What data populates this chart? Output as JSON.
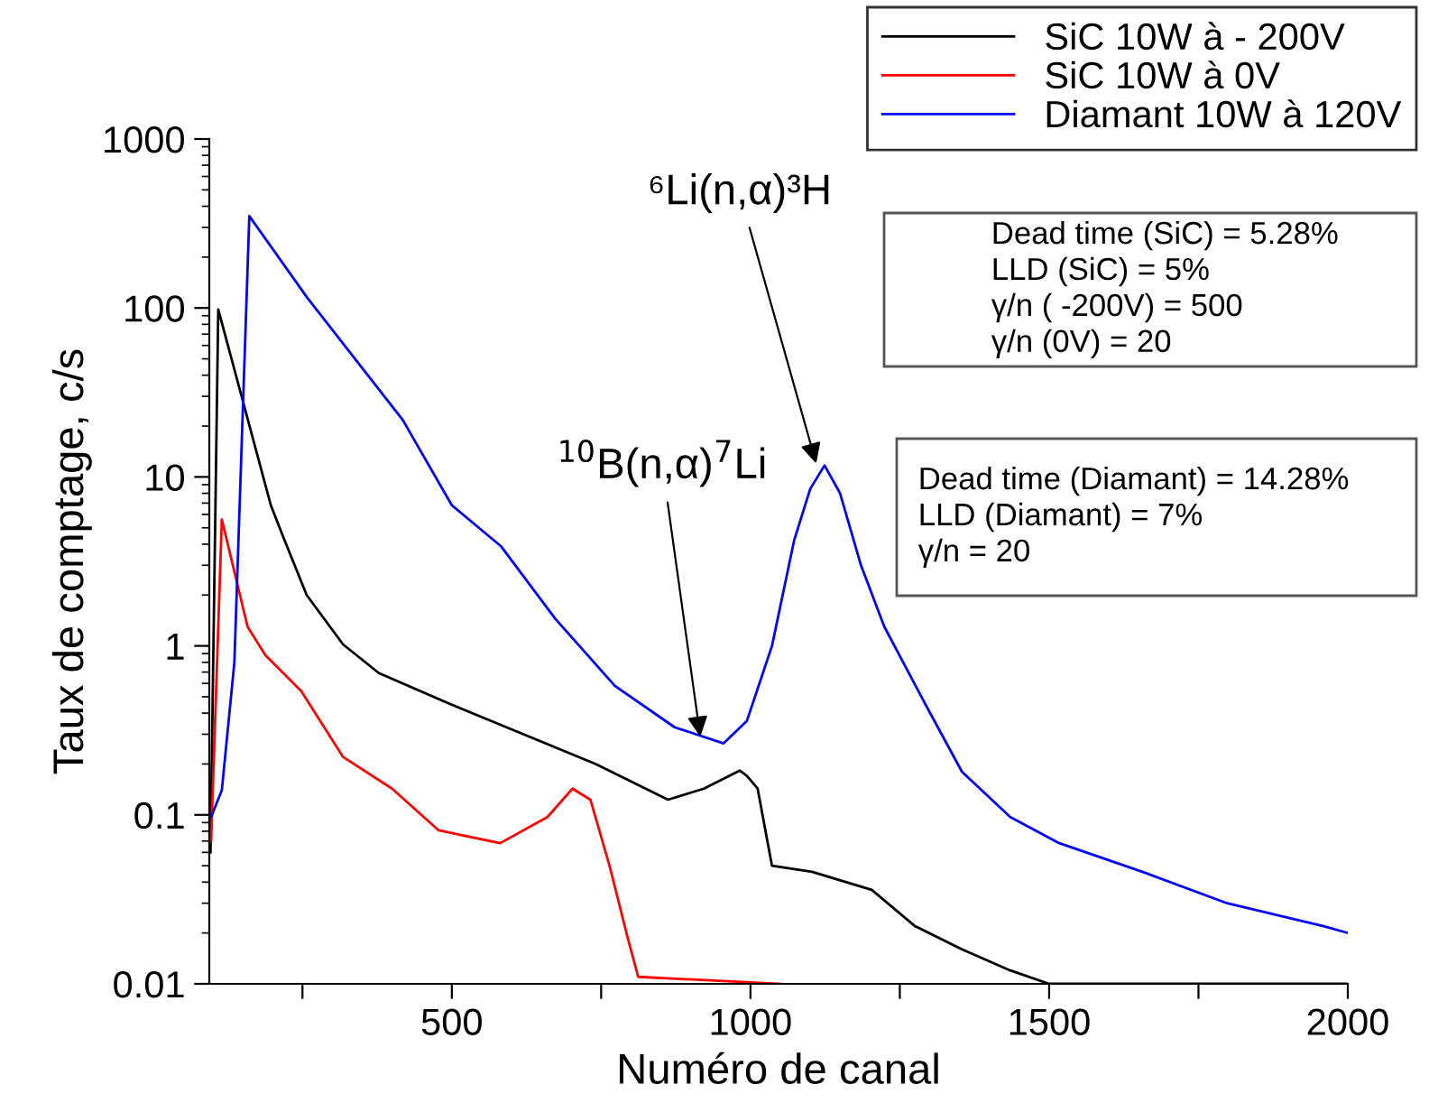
{
  "chart_data": {
    "type": "line",
    "xlabel": "Numéro de canal",
    "ylabel": "Taux de comptage, c/s",
    "log": "y",
    "xlim": [
      94,
      2000
    ],
    "xticks": [
      {
        "value": 250,
        "label": null
      },
      500,
      {
        "value": 750,
        "label": null
      },
      1000,
      {
        "value": 1250,
        "label": null
      },
      1500,
      {
        "value": 1750,
        "label": null
      },
      2000
    ],
    "ylim": [
      0.01,
      1000
    ],
    "yticks": [
      0.01,
      0.1,
      1,
      10,
      100,
      1000
    ],
    "grid": false,
    "legend": "top right",
    "marker": "none",
    "line_style": "solid",
    "series": [
      {
        "name": "SiC 10W à - 200V",
        "color": "#000000",
        "x": [
          96,
          109,
          197,
          218,
          257,
          318,
          378,
          499,
          620,
          741,
          862,
          922,
          982,
          994,
          1012,
          1036,
          1103,
          1203,
          1275,
          1354,
          1435,
          1500,
          2000
        ],
        "values": [
          0.06,
          98,
          6.8,
          4.4,
          2.0,
          1.02,
          0.69,
          0.45,
          0.3,
          0.2,
          0.123,
          0.143,
          0.183,
          0.17,
          0.143,
          0.05,
          0.046,
          0.036,
          0.022,
          0.016,
          0.012,
          0.01,
          0.01
        ]
      },
      {
        "name": "SiC 10W à 0V",
        "color": "#ff0000",
        "x": [
          97,
          115,
          158,
          188,
          248,
          318,
          400,
          478,
          581,
          660,
          702,
          732,
          764,
          794,
          812,
          1050
        ],
        "values": [
          0.07,
          5.6,
          1.3,
          0.88,
          0.54,
          0.22,
          0.143,
          0.081,
          0.068,
          0.097,
          0.143,
          0.123,
          0.05,
          0.019,
          0.011,
          0.01
        ]
      },
      {
        "name": "Diamant 10W à 120V",
        "color": "#0000ff",
        "x": [
          97,
          115,
          136,
          161,
          258,
          418,
          500,
          582,
          673,
          773,
          873,
          955,
          994,
          1036,
          1073,
          1100,
          1124,
          1150,
          1185,
          1224,
          1293,
          1354,
          1435,
          1517,
          1656,
          1798,
          1958,
          2000
        ],
        "values": [
          0.097,
          0.14,
          0.8,
          350,
          115,
          21.7,
          6.8,
          3.9,
          1.45,
          0.58,
          0.33,
          0.265,
          0.36,
          1.0,
          4.2,
          8.5,
          11.7,
          8.0,
          3.0,
          1.3,
          0.45,
          0.18,
          0.097,
          0.068,
          0.046,
          0.03,
          0.022,
          0.02
        ]
      }
    ],
    "annotations": [
      {
        "text": "⁶Li(n,α)³H",
        "x": 1110,
        "y": 12
      },
      {
        "text": "$^{10}$B(n,α)$^{7}$Li",
        "x": 916,
        "y": 0.29
      },
      "Dead time (SiC) = 5.28%\nLLD (SiC) = 5%\nγ/n ( -200V) = 500\nγ/n (0V) = 20",
      "Dead time (Diamant) = 14.28%\nLLD (Diamant) = 7%\nγ/n = 20"
    ]
  }
}
